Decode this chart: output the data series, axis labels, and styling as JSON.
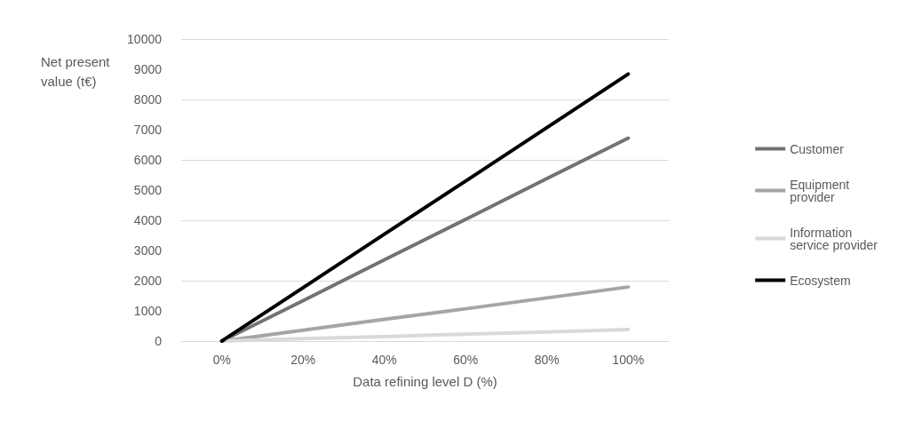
{
  "chart_data": {
    "type": "line",
    "xlabel": "Data refining level D (%)",
    "ylabel": "Net present value (t€)",
    "categories": [
      "0%",
      "20%",
      "40%",
      "60%",
      "80%",
      "100%"
    ],
    "series": [
      {
        "name": "Customer",
        "color": "#767171",
        "values": [
          0,
          1340,
          2690,
          4030,
          5380,
          6720
        ]
      },
      {
        "name": "Equipment provider",
        "color": "#a5a5a5",
        "values": [
          0,
          360,
          720,
          1070,
          1430,
          1790
        ]
      },
      {
        "name": "Information service provider",
        "color": "#d9d9d9",
        "values": [
          0,
          80,
          150,
          230,
          300,
          380
        ]
      },
      {
        "name": "Ecosystem",
        "color": "#000000",
        "values": [
          0,
          1770,
          3540,
          5300,
          7070,
          8840
        ]
      }
    ],
    "ylim": [
      0,
      10000
    ],
    "yticks": [
      0,
      1000,
      2000,
      3000,
      4000,
      5000,
      6000,
      7000,
      8000,
      9000,
      10000
    ],
    "grid": "y",
    "legend": "right",
    "marker": "none",
    "line_style": "solid"
  }
}
